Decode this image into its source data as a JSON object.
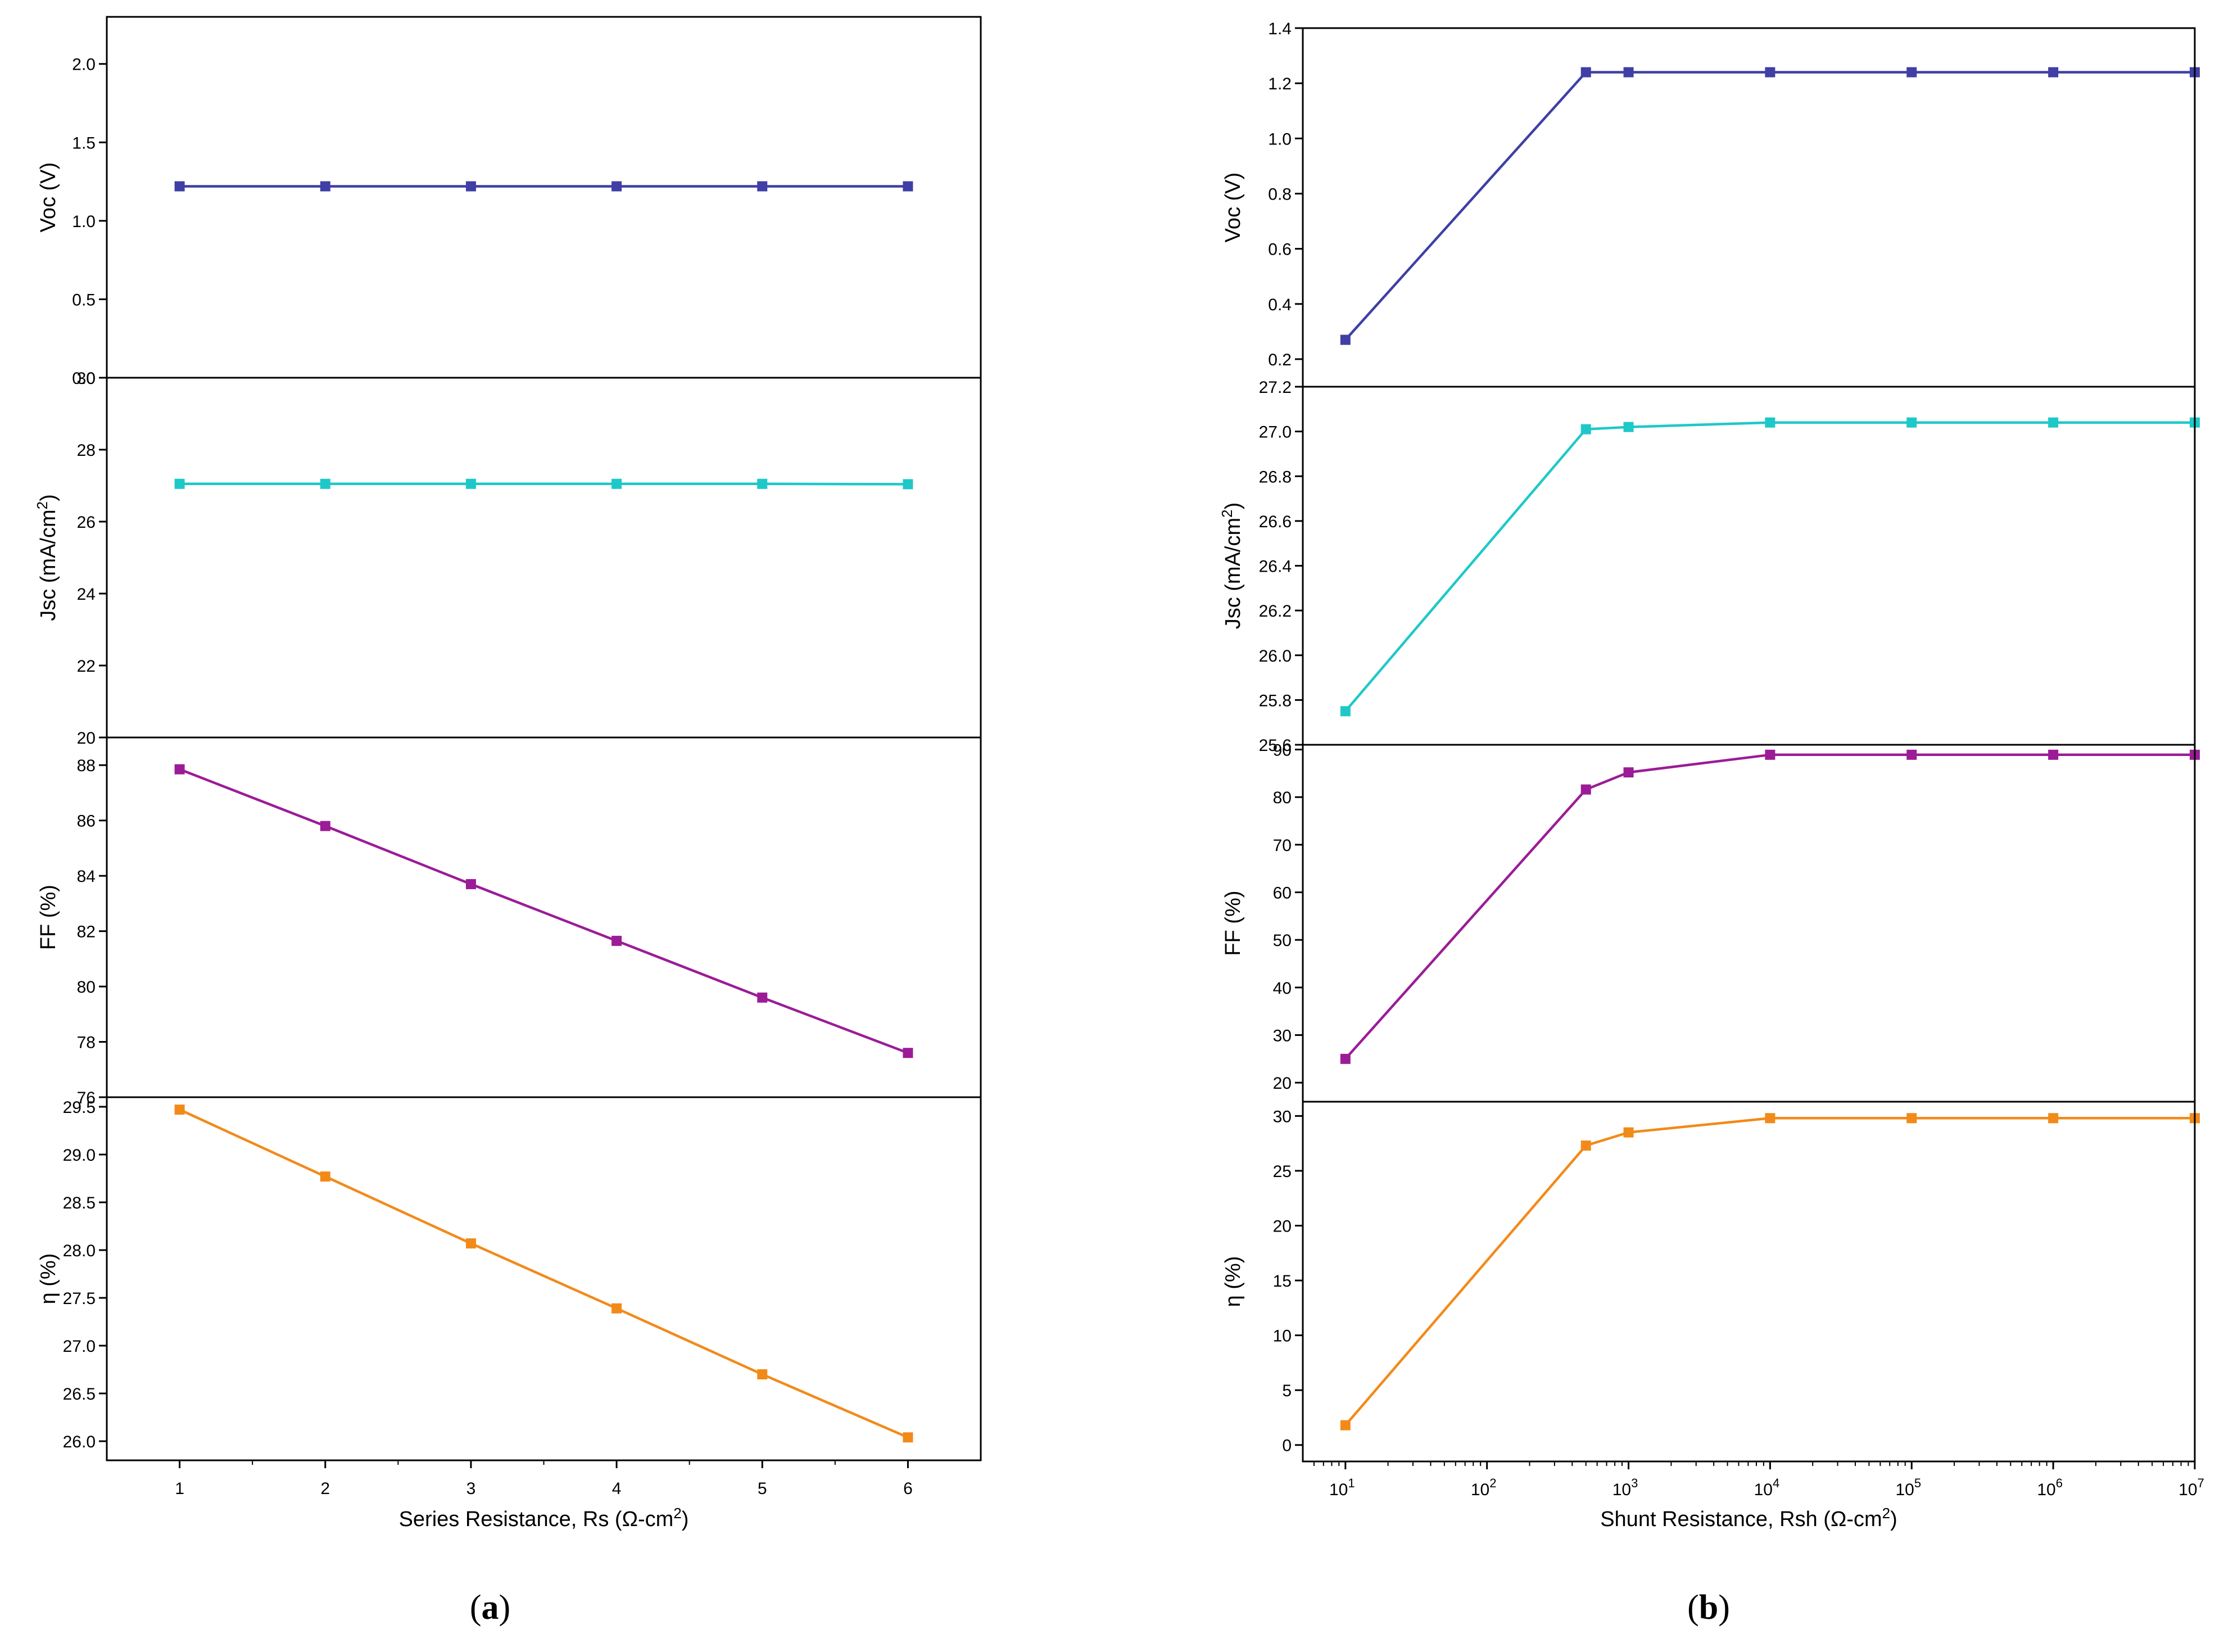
{
  "panels": [
    {
      "id": "a",
      "caption": "a",
      "xlabel": "Series Resistance, Rs (Ω-cm",
      "xlabel_sup": "2",
      "xlabel_end": ")",
      "xscale": "linear",
      "xlim": [
        0.5,
        6.5
      ],
      "xticks": [
        1,
        2,
        3,
        4,
        5,
        6
      ],
      "xticklabels": [
        "1",
        "2",
        "3",
        "4",
        "5",
        "6"
      ]
    },
    {
      "id": "b",
      "caption": "b",
      "xlabel": "Shunt Resistance, Rsh (Ω-cm",
      "xlabel_sup": "2",
      "xlabel_end": ")",
      "xscale": "log",
      "xlim": [
        5,
        10000000
      ],
      "xticks": [
        10,
        100,
        1000,
        10000,
        100000,
        1000000,
        10000000
      ],
      "xticklabels": [
        {
          "base": "10",
          "exp": "1"
        },
        {
          "base": "10",
          "exp": "2"
        },
        {
          "base": "10",
          "exp": "3"
        },
        {
          "base": "10",
          "exp": "4"
        },
        {
          "base": "10",
          "exp": "5"
        },
        {
          "base": "10",
          "exp": "6"
        },
        {
          "base": "10",
          "exp": "7"
        }
      ]
    }
  ],
  "chart_data": [
    {
      "type": "line",
      "panel": "a",
      "name": "Voc",
      "ylabel": "Voc (V)",
      "ylabel_sup": "",
      "ylabel_end": "",
      "ylim": [
        0.0,
        2.3
      ],
      "yticks": [
        0.0,
        0.5,
        1.0,
        1.5,
        2.0
      ],
      "yticklabels": [
        "0.0",
        "0.5",
        "1.0",
        "1.5",
        "2.0"
      ],
      "color": "#3f3fa6",
      "x": [
        1,
        2,
        3,
        4,
        5,
        6
      ],
      "y": [
        1.22,
        1.22,
        1.22,
        1.22,
        1.22,
        1.22
      ]
    },
    {
      "type": "line",
      "panel": "a",
      "name": "Jsc",
      "ylabel": "Jsc (mA/cm",
      "ylabel_sup": "2",
      "ylabel_end": ")",
      "ylim": [
        20,
        30
      ],
      "yticks": [
        20,
        22,
        24,
        26,
        28,
        30
      ],
      "yticklabels": [
        "20",
        "22",
        "24",
        "26",
        "28",
        "30"
      ],
      "color": "#1fc8c8",
      "x": [
        1,
        2,
        3,
        4,
        5,
        6
      ],
      "y": [
        27.05,
        27.05,
        27.05,
        27.05,
        27.05,
        27.04
      ]
    },
    {
      "type": "line",
      "panel": "a",
      "name": "FF",
      "ylabel": "FF (%)",
      "ylabel_sup": "",
      "ylabel_end": "",
      "ylim": [
        76,
        89
      ],
      "yticks": [
        76,
        78,
        80,
        82,
        84,
        86,
        88
      ],
      "yticklabels": [
        "76",
        "78",
        "80",
        "82",
        "84",
        "86",
        "88"
      ],
      "color": "#9b1c96",
      "x": [
        1,
        2,
        3,
        4,
        5,
        6
      ],
      "y": [
        87.85,
        85.8,
        83.7,
        81.65,
        79.6,
        77.6
      ]
    },
    {
      "type": "line",
      "panel": "a",
      "name": "eta",
      "ylabel": "η (%)",
      "ylabel_sup": "",
      "ylabel_end": "",
      "ylim": [
        25.8,
        29.6
      ],
      "yticks": [
        26.0,
        26.5,
        27.0,
        27.5,
        28.0,
        28.5,
        29.0,
        29.5
      ],
      "yticklabels": [
        "26.0",
        "26.5",
        "27.0",
        "27.5",
        "28.0",
        "28.5",
        "29.0",
        "29.5"
      ],
      "color": "#f28a1a",
      "x": [
        1,
        2,
        3,
        4,
        5,
        6
      ],
      "y": [
        29.47,
        28.77,
        28.07,
        27.39,
        26.7,
        26.04
      ]
    },
    {
      "type": "line",
      "panel": "b",
      "name": "Voc",
      "ylabel": "Voc (V)",
      "ylabel_sup": "",
      "ylabel_end": "",
      "ylim": [
        0.1,
        1.4
      ],
      "yticks": [
        0.2,
        0.4,
        0.6,
        0.8,
        1.0,
        1.2,
        1.4
      ],
      "yticklabels": [
        "0.2",
        "0.4",
        "0.6",
        "0.8",
        "1.0",
        "1.2",
        "1.4"
      ],
      "color": "#3f3fa6",
      "x": [
        10,
        500,
        1000,
        10000,
        100000,
        1000000,
        10000000
      ],
      "y": [
        0.27,
        1.24,
        1.24,
        1.24,
        1.24,
        1.24,
        1.24
      ]
    },
    {
      "type": "line",
      "panel": "b",
      "name": "Jsc",
      "ylabel": "Jsc (mA/cm",
      "ylabel_sup": "2",
      "ylabel_end": ")",
      "ylim": [
        25.6,
        27.2
      ],
      "yticks": [
        25.6,
        25.8,
        26.0,
        26.2,
        26.4,
        26.6,
        26.8,
        27.0,
        27.2
      ],
      "yticklabels": [
        "25.6",
        "25.8",
        "26.0",
        "26.2",
        "26.4",
        "26.6",
        "26.8",
        "27.0",
        "27.2"
      ],
      "color": "#1fc8c8",
      "x": [
        10,
        500,
        1000,
        10000,
        100000,
        1000000,
        10000000
      ],
      "y": [
        25.75,
        27.01,
        27.02,
        27.04,
        27.04,
        27.04,
        27.04
      ]
    },
    {
      "type": "line",
      "panel": "b",
      "name": "FF",
      "ylabel": "FF (%)",
      "ylabel_sup": "",
      "ylabel_end": "",
      "ylim": [
        16,
        91
      ],
      "yticks": [
        20,
        30,
        40,
        50,
        60,
        70,
        80,
        90
      ],
      "yticklabels": [
        "20",
        "30",
        "40",
        "50",
        "60",
        "70",
        "80",
        "90"
      ],
      "color": "#9b1c96",
      "x": [
        10,
        500,
        1000,
        10000,
        100000,
        1000000,
        10000000
      ],
      "y": [
        25,
        81.6,
        85.2,
        88.9,
        88.9,
        88.9,
        88.9
      ]
    },
    {
      "type": "line",
      "panel": "b",
      "name": "eta",
      "ylabel": "η (%)",
      "ylabel_sup": "",
      "ylabel_end": "",
      "ylim": [
        -1.5,
        31.3
      ],
      "yticks": [
        0,
        5,
        10,
        15,
        20,
        25,
        30
      ],
      "yticklabels": [
        "0",
        "5",
        "10",
        "15",
        "20",
        "25",
        "30"
      ],
      "color": "#f28a1a",
      "x": [
        10,
        500,
        1000,
        10000,
        100000,
        1000000,
        10000000
      ],
      "y": [
        1.8,
        27.3,
        28.5,
        29.8,
        29.8,
        29.8,
        29.8
      ]
    }
  ]
}
